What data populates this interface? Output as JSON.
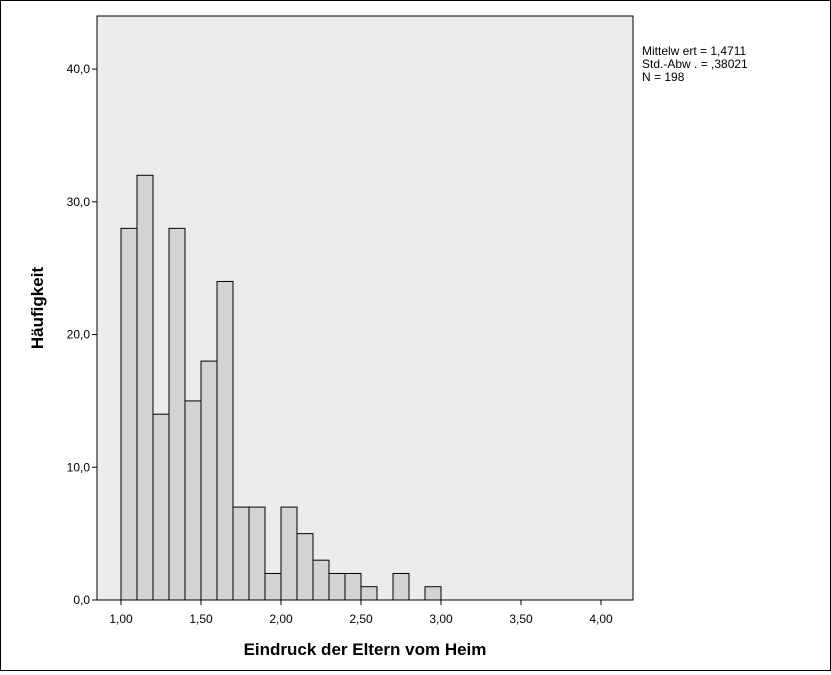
{
  "chart_data": {
    "type": "bar",
    "xlabel": "Eindruck der Eltern vom Heim",
    "ylabel": "Häufigkeit",
    "xlim": [
      0.85,
      4.2
    ],
    "ylim": [
      0,
      44
    ],
    "x_ticks": [
      1.0,
      1.5,
      2.0,
      2.5,
      3.0,
      3.5,
      4.0
    ],
    "x_tick_labels": [
      "1,00",
      "1,50",
      "2,00",
      "2,50",
      "3,00",
      "3,50",
      "4,00"
    ],
    "y_ticks": [
      0,
      10,
      20,
      30,
      40
    ],
    "y_tick_labels": [
      "0,0",
      "10,0",
      "20,0",
      "30,0",
      "40,0"
    ],
    "bin_width": 0.1,
    "bins": [
      {
        "start": 1.0,
        "value": 28
      },
      {
        "start": 1.1,
        "value": 32
      },
      {
        "start": 1.2,
        "value": 14
      },
      {
        "start": 1.3,
        "value": 28
      },
      {
        "start": 1.4,
        "value": 15
      },
      {
        "start": 1.5,
        "value": 18
      },
      {
        "start": 1.6,
        "value": 24
      },
      {
        "start": 1.7,
        "value": 7
      },
      {
        "start": 1.8,
        "value": 7
      },
      {
        "start": 1.9,
        "value": 2
      },
      {
        "start": 2.0,
        "value": 7
      },
      {
        "start": 2.1,
        "value": 5
      },
      {
        "start": 2.2,
        "value": 3
      },
      {
        "start": 2.3,
        "value": 2
      },
      {
        "start": 2.4,
        "value": 2
      },
      {
        "start": 2.5,
        "value": 1
      },
      {
        "start": 2.7,
        "value": 2
      },
      {
        "start": 2.9,
        "value": 1
      }
    ],
    "statistics": [
      "Mittelw ert = 1,4711",
      "Std.-Abw . = ,38021",
      "N = 198"
    ],
    "grid": false,
    "legend": "none",
    "colors": {
      "plot_background": "#ececec",
      "bar_fill": "#d3d3d3",
      "bar_stroke": "#000000"
    }
  }
}
